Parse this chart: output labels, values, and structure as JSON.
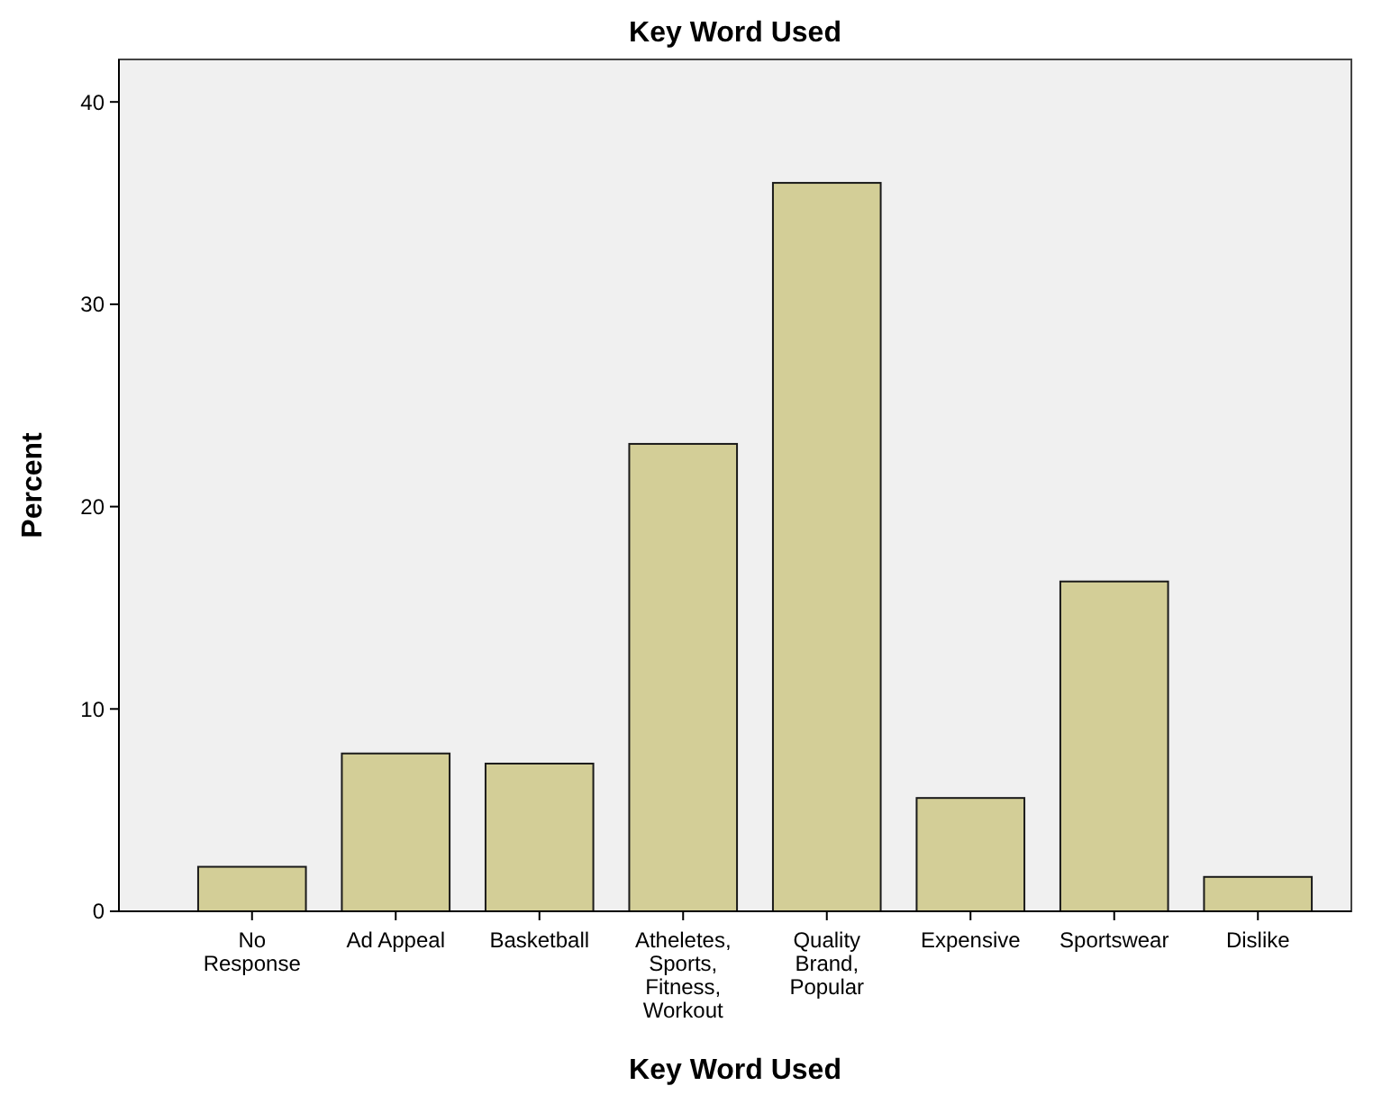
{
  "chart_data": {
    "type": "bar",
    "title": "Key Word Used",
    "xlabel": "Key Word Used",
    "ylabel": "Percent",
    "categories": [
      "No Response",
      "Ad Appeal",
      "Basketball",
      "Atheletes, Sports, Fitness, Workout",
      "Quality Brand, Popular",
      "Expensive",
      "Sportswear",
      "Dislike"
    ],
    "values": [
      2.2,
      7.8,
      7.3,
      23.1,
      36.0,
      5.6,
      16.3,
      1.7
    ],
    "color": "#d3ce97",
    "ylim": [
      0,
      42.1
    ],
    "yticks": [
      0,
      10,
      20,
      30,
      40
    ],
    "grid": false
  }
}
